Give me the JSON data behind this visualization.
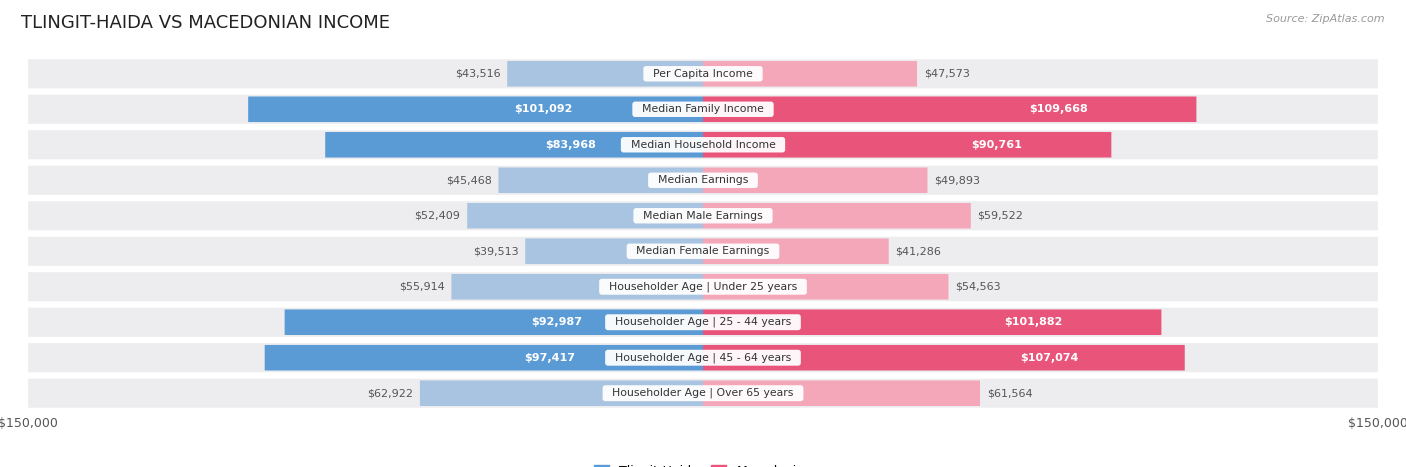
{
  "title": "TLINGIT-HAIDA VS MACEDONIAN INCOME",
  "source": "Source: ZipAtlas.com",
  "categories": [
    "Per Capita Income",
    "Median Family Income",
    "Median Household Income",
    "Median Earnings",
    "Median Male Earnings",
    "Median Female Earnings",
    "Householder Age | Under 25 years",
    "Householder Age | 25 - 44 years",
    "Householder Age | 45 - 64 years",
    "Householder Age | Over 65 years"
  ],
  "tlingit_values": [
    43516,
    101092,
    83968,
    45468,
    52409,
    39513,
    55914,
    92987,
    97417,
    62922
  ],
  "macedonian_values": [
    47573,
    109668,
    90761,
    49893,
    59522,
    41286,
    54563,
    101882,
    107074,
    61564
  ],
  "tlingit_labels": [
    "$43,516",
    "$101,092",
    "$83,968",
    "$45,468",
    "$52,409",
    "$39,513",
    "$55,914",
    "$92,987",
    "$97,417",
    "$62,922"
  ],
  "macedonian_labels": [
    "$47,573",
    "$109,668",
    "$90,761",
    "$49,893",
    "$59,522",
    "$41,286",
    "$54,563",
    "$101,882",
    "$107,074",
    "$61,564"
  ],
  "tlingit_color_light": "#a8c4e0",
  "tlingit_color_dark": "#5b9bd5",
  "macedonian_color_light": "#f4a7b9",
  "macedonian_color_dark": "#e8547a",
  "max_value": 150000,
  "background_color": "#ffffff",
  "row_bg_color": "#ededf0",
  "legend_tlingit": "Tlingit-Haida",
  "legend_macedonian": "Macedonian",
  "tlingit_inside": [
    false,
    true,
    true,
    false,
    false,
    false,
    false,
    true,
    true,
    false
  ],
  "macedonian_inside": [
    false,
    true,
    true,
    false,
    false,
    false,
    false,
    true,
    true,
    false
  ]
}
